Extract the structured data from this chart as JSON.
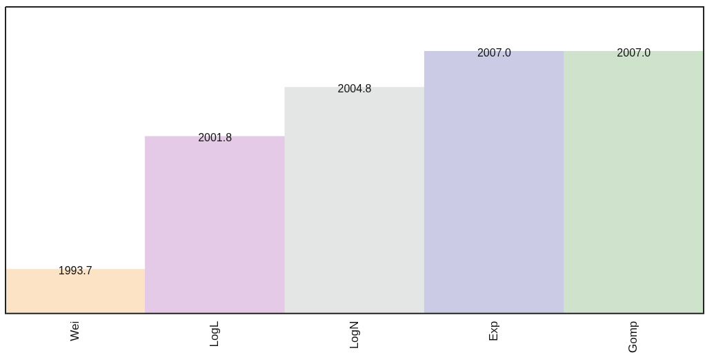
{
  "chart_data": {
    "type": "bar",
    "categories": [
      "Wei",
      "LogL",
      "LogN",
      "Exp",
      "Gomp"
    ],
    "values": [
      1993.7,
      2001.8,
      2004.8,
      2007.0,
      2007.0
    ],
    "colors": [
      "#fde3c6",
      "#e4cae6",
      "#e3e6e4",
      "#cbcbe5",
      "#cee2cc"
    ],
    "ylim": [
      1991,
      2009.7
    ],
    "value_labels": [
      "1993.7",
      "2001.8",
      "2004.8",
      "2007.0",
      "2007.0"
    ],
    "tick_labels": "x",
    "grid": false,
    "legend": false
  }
}
